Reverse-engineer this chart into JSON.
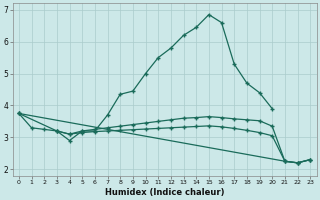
{
  "xlabel": "Humidex (Indice chaleur)",
  "xlim": [
    -0.5,
    23.5
  ],
  "ylim": [
    1.8,
    7.2
  ],
  "yticks": [
    2,
    3,
    4,
    5,
    6,
    7
  ],
  "xticks": [
    0,
    1,
    2,
    3,
    4,
    5,
    6,
    7,
    8,
    9,
    10,
    11,
    12,
    13,
    14,
    15,
    16,
    17,
    18,
    19,
    20,
    21,
    22,
    23
  ],
  "bg_color": "#cce8e8",
  "line_color": "#1a6b5a",
  "grid_color": "#aacccc",
  "line1_x": [
    0,
    1,
    2,
    3,
    4,
    5,
    6,
    7,
    8,
    9,
    10,
    11,
    12,
    13,
    14,
    15,
    16,
    17,
    18,
    19,
    20
  ],
  "line1_y": [
    3.75,
    3.3,
    3.25,
    3.2,
    2.9,
    3.2,
    3.2,
    3.7,
    4.35,
    4.45,
    5.0,
    5.5,
    5.8,
    6.2,
    6.45,
    6.85,
    6.6,
    5.3,
    4.7,
    4.4,
    3.9
  ],
  "line2_x": [
    0,
    3,
    4,
    5,
    6,
    7,
    8,
    9,
    10,
    11,
    12,
    13,
    14,
    15,
    16,
    17,
    18,
    19,
    20,
    21,
    22,
    23
  ],
  "line2_y": [
    3.75,
    3.2,
    3.1,
    3.2,
    3.25,
    3.3,
    3.35,
    3.4,
    3.45,
    3.5,
    3.55,
    3.6,
    3.62,
    3.65,
    3.62,
    3.58,
    3.55,
    3.52,
    3.35,
    2.25,
    2.2,
    2.3
  ],
  "line3_x": [
    3,
    4,
    5,
    6,
    7,
    8,
    9,
    10,
    11,
    12,
    13,
    14,
    15,
    16,
    17,
    18,
    19,
    20,
    21,
    22,
    23
  ],
  "line3_y": [
    3.2,
    3.1,
    3.15,
    3.18,
    3.2,
    3.22,
    3.24,
    3.26,
    3.28,
    3.3,
    3.32,
    3.34,
    3.36,
    3.33,
    3.28,
    3.22,
    3.15,
    3.05,
    2.25,
    2.2,
    2.3
  ],
  "line4_x": [
    0,
    21,
    22,
    23
  ],
  "line4_y": [
    3.75,
    2.25,
    2.2,
    2.3
  ]
}
